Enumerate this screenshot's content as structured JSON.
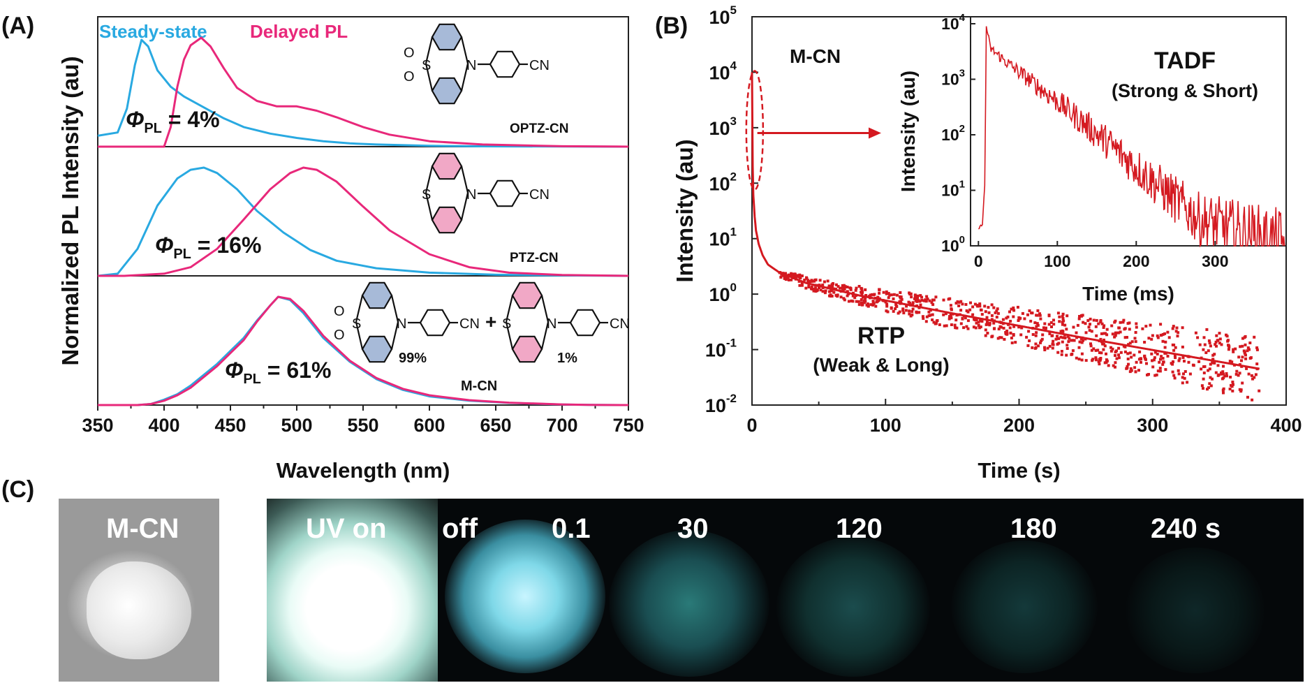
{
  "colors": {
    "steady": "#29a9e1",
    "delayed": "#e8287a",
    "decay": "#d41920",
    "blue_ring": "#a7bad8",
    "pink_ring": "#f1a8c6"
  },
  "chart_data": [
    {
      "type": "line",
      "panel_label": "(A)",
      "xlabel": "Wavelength (nm)",
      "ylabel": "Normalized PL Intensity (au)",
      "xlim": [
        350,
        750
      ],
      "x_ticks": [
        "350",
        "400",
        "450",
        "500",
        "550",
        "600",
        "650",
        "700",
        "750"
      ],
      "legend": {
        "steady": "Steady-state",
        "delayed": "Delayed PL"
      },
      "subpanels": [
        {
          "molecule": "OPTZ-CN",
          "phi": "= 4%",
          "series": [
            {
              "name": "Steady-state",
              "x": [
                350,
                365,
                372,
                378,
                383,
                388,
                395,
                405,
                415,
                430,
                445,
                460,
                480,
                500,
                520,
                540,
                560,
                600,
                640,
                700,
                750
              ],
              "y": [
                0.1,
                0.13,
                0.35,
                0.75,
                0.98,
                0.92,
                0.7,
                0.55,
                0.46,
                0.36,
                0.26,
                0.18,
                0.12,
                0.08,
                0.05,
                0.03,
                0.02,
                0.008,
                0.003,
                0.001,
                0
              ]
            },
            {
              "name": "Delayed PL",
              "x": [
                350,
                400,
                405,
                410,
                415,
                420,
                428,
                435,
                445,
                455,
                470,
                485,
                500,
                515,
                530,
                550,
                570,
                600,
                640,
                700,
                750
              ],
              "y": [
                0,
                0,
                0.18,
                0.55,
                0.8,
                0.93,
                1.0,
                0.92,
                0.72,
                0.54,
                0.42,
                0.37,
                0.37,
                0.33,
                0.27,
                0.18,
                0.11,
                0.05,
                0.02,
                0.004,
                0
              ]
            }
          ]
        },
        {
          "molecule": "PTZ-CN",
          "phi": "= 16%",
          "series": [
            {
              "name": "Steady-state",
              "x": [
                350,
                365,
                380,
                395,
                410,
                420,
                430,
                440,
                455,
                470,
                490,
                510,
                530,
                560,
                600,
                650,
                700,
                750
              ],
              "y": [
                0,
                0.02,
                0.25,
                0.65,
                0.9,
                0.98,
                1.0,
                0.95,
                0.8,
                0.6,
                0.4,
                0.24,
                0.14,
                0.07,
                0.03,
                0.01,
                0.004,
                0
              ]
            },
            {
              "name": "Delayed PL",
              "x": [
                350,
                370,
                400,
                420,
                440,
                460,
                480,
                495,
                505,
                515,
                530,
                550,
                570,
                600,
                630,
                660,
                700,
                750
              ],
              "y": [
                0,
                0,
                0.02,
                0.08,
                0.25,
                0.52,
                0.8,
                0.95,
                1.0,
                0.98,
                0.87,
                0.64,
                0.42,
                0.2,
                0.08,
                0.03,
                0.008,
                0
              ]
            }
          ]
        },
        {
          "molecule": "M-CN",
          "phi": "= 61%",
          "series": [
            {
              "name": "Steady-state",
              "x": [
                350,
                380,
                390,
                400,
                410,
                420,
                430,
                440,
                450,
                460,
                470,
                480,
                486,
                495,
                505,
                520,
                540,
                560,
                580,
                600,
                630,
                660,
                700,
                720,
                750
              ],
              "y": [
                0,
                0,
                0.01,
                0.05,
                0.1,
                0.18,
                0.28,
                0.38,
                0.5,
                0.62,
                0.78,
                0.92,
                1.0,
                0.97,
                0.85,
                0.62,
                0.4,
                0.24,
                0.14,
                0.08,
                0.04,
                0.02,
                0.005,
                0.002,
                0
              ]
            },
            {
              "name": "Delayed PL",
              "x": [
                350,
                380,
                390,
                400,
                410,
                420,
                430,
                440,
                450,
                460,
                470,
                480,
                486,
                495,
                505,
                520,
                540,
                560,
                580,
                600,
                630,
                660,
                700,
                720,
                750
              ],
              "y": [
                0,
                0,
                0.01,
                0.04,
                0.09,
                0.16,
                0.26,
                0.36,
                0.48,
                0.6,
                0.77,
                0.92,
                1.0,
                0.98,
                0.87,
                0.64,
                0.41,
                0.25,
                0.15,
                0.09,
                0.045,
                0.022,
                0.006,
                0.002,
                0
              ]
            }
          ]
        }
      ],
      "structure_labels": {
        "cn": "CN",
        "n": "N",
        "s": "S",
        "o": "O",
        "pct99": "99%",
        "pct1": "1%",
        "plus": "+"
      }
    },
    {
      "type": "scatter",
      "panel_label": "(B)",
      "title_text": "M-CN",
      "xlabel": "Time (s)",
      "ylabel": "Intensity (au)",
      "xlim": [
        0,
        400
      ],
      "ylim": [
        0.01,
        100000
      ],
      "yscale": "log",
      "x_ticks": [
        "0",
        "100",
        "200",
        "300",
        "400"
      ],
      "y_tick_exponents": [
        "-2",
        "-1",
        "0",
        "1",
        "2",
        "3",
        "4",
        "5"
      ],
      "annotation_rtp": "RTP",
      "annotation_rtp_sub": "(Weak & Long)",
      "decay_model": {
        "t": [
          0,
          0.5,
          1,
          2,
          3,
          5,
          8,
          12,
          20,
          40,
          80,
          150,
          250,
          380
        ],
        "y": [
          10000,
          200,
          60,
          25,
          14,
          8,
          5,
          3.4,
          2.5,
          1.6,
          0.95,
          0.45,
          0.16,
          0.045
        ]
      },
      "inset": {
        "xlabel": "Time (ms)",
        "ylabel": "Intensity (au)",
        "xlim": [
          -10,
          390
        ],
        "ylim": [
          1,
          10000
        ],
        "x_ticks": [
          "0",
          "100",
          "200",
          "300"
        ],
        "y_tick_exponents": [
          "0",
          "1",
          "2",
          "3",
          "4"
        ],
        "annotation": "TADF",
        "annotation_sub": "(Strong & Short)",
        "decay_model": {
          "t": [
            0,
            5,
            8,
            10,
            15,
            40,
            100,
            160,
            220,
            280,
            390
          ],
          "y": [
            2,
            2.5,
            12,
            9000,
            3600,
            1800,
            400,
            80,
            15,
            3,
            1
          ]
        }
      }
    }
  ],
  "panel_c": {
    "panel_label": "(C)",
    "photo_labels": [
      "M-CN",
      "UV on",
      "off",
      "0.1",
      "30",
      "120",
      "180",
      "240 s"
    ]
  }
}
